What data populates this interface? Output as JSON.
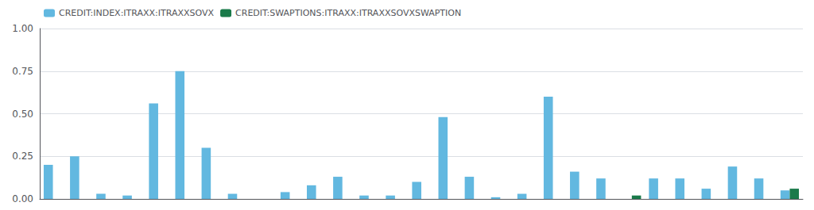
{
  "chart_data": {
    "type": "bar",
    "categories": [
      null,
      null,
      null,
      null,
      null,
      null,
      null,
      null,
      null,
      null,
      null,
      null,
      null,
      null,
      null,
      null,
      null,
      null,
      null,
      null,
      null,
      null,
      null,
      null,
      null,
      null,
      null,
      null,
      null
    ],
    "series": [
      {
        "name": "CREDIT:INDEX:ITRAXX:ITRAXXSOVX",
        "color": "#62B8E0",
        "values": [
          0.2,
          0.25,
          0.03,
          0.02,
          0.56,
          0.75,
          0.3,
          0.03,
          0.0,
          0.04,
          0.08,
          0.13,
          0.02,
          0.02,
          0.1,
          0.48,
          0.13,
          0.01,
          0.03,
          0.6,
          0.16,
          0.12,
          0.0,
          0.12,
          0.12,
          0.06,
          0.19,
          0.12,
          0.05
        ]
      },
      {
        "name": "CREDIT:SWAPTIONS:ITRAXX:ITRAXXSOVXSWAPTION",
        "color": "#1A7A4A",
        "values": [
          0.0,
          0.0,
          0.0,
          0.0,
          0.0,
          0.0,
          0.0,
          0.0,
          0.0,
          0.0,
          0.0,
          0.0,
          0.0,
          0.0,
          0.0,
          0.0,
          0.0,
          0.0,
          0.0,
          0.0,
          0.0,
          0.0,
          0.02,
          0.0,
          0.0,
          0.0,
          0.0,
          0.0,
          0.06
        ]
      }
    ],
    "ylim": [
      0,
      1.0
    ],
    "yticks": [
      {
        "value": 0.0,
        "label": "0.00"
      },
      0.25,
      {
        "value": 0.5,
        "label": "0.50"
      },
      0.75,
      {
        "value": 1.0,
        "label": "1.00"
      }
    ],
    "grid": true,
    "legend": "upper left",
    "tick_labels": "y"
  }
}
